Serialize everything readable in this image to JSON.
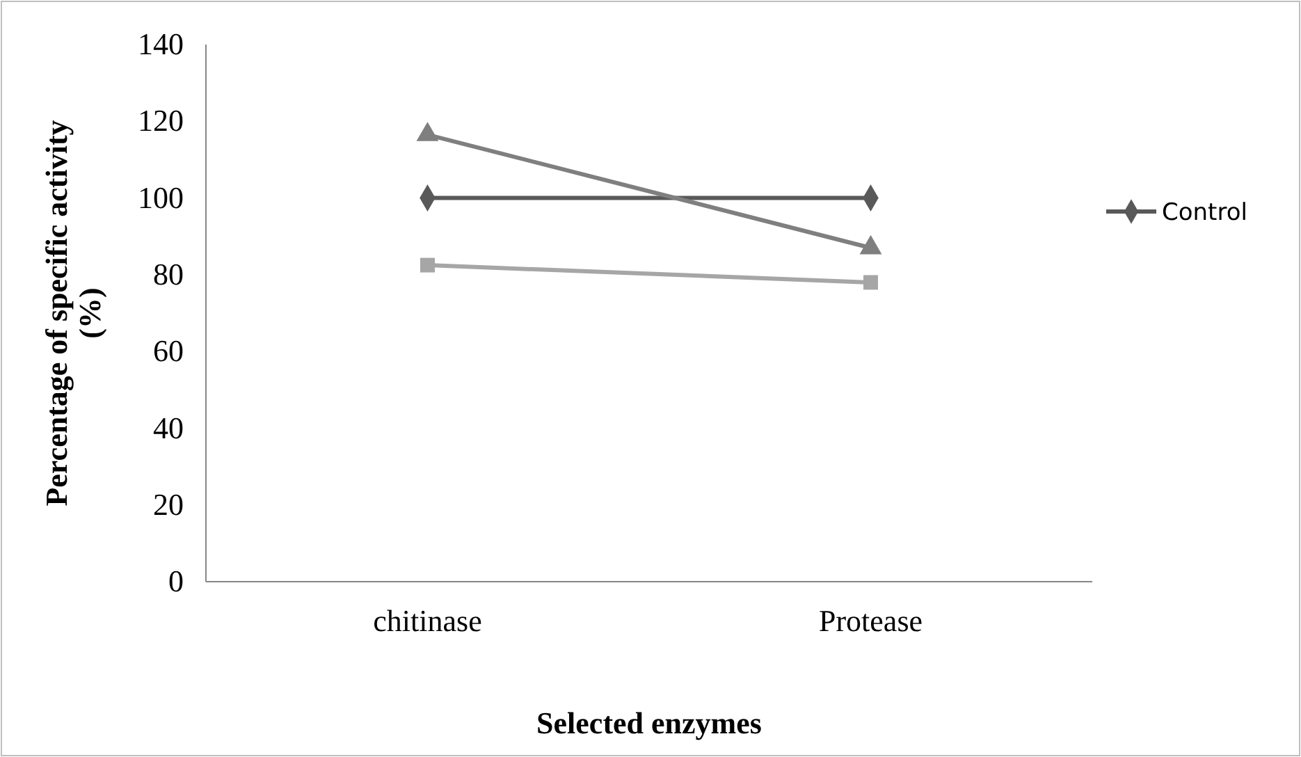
{
  "chart_data": {
    "type": "line",
    "xlabel": "Selected enzymes",
    "ylabel": "Percentage of specific activity (%)",
    "categories": [
      "chitinase",
      "Protease"
    ],
    "ylim": [
      0,
      140
    ],
    "yticks": [
      0,
      20,
      40,
      60,
      80,
      100,
      120,
      140
    ],
    "legend": "right",
    "grid": false,
    "series": [
      {
        "name": "Control",
        "color": "#595959",
        "marker": "diamond",
        "values": [
          100,
          100
        ]
      },
      {
        "color": "#a6a6a6",
        "marker": "square",
        "values": [
          82.5,
          78
        ]
      },
      {
        "color": "#7f7f7f",
        "marker": "triangle",
        "values": [
          116.5,
          87
        ]
      }
    ]
  }
}
